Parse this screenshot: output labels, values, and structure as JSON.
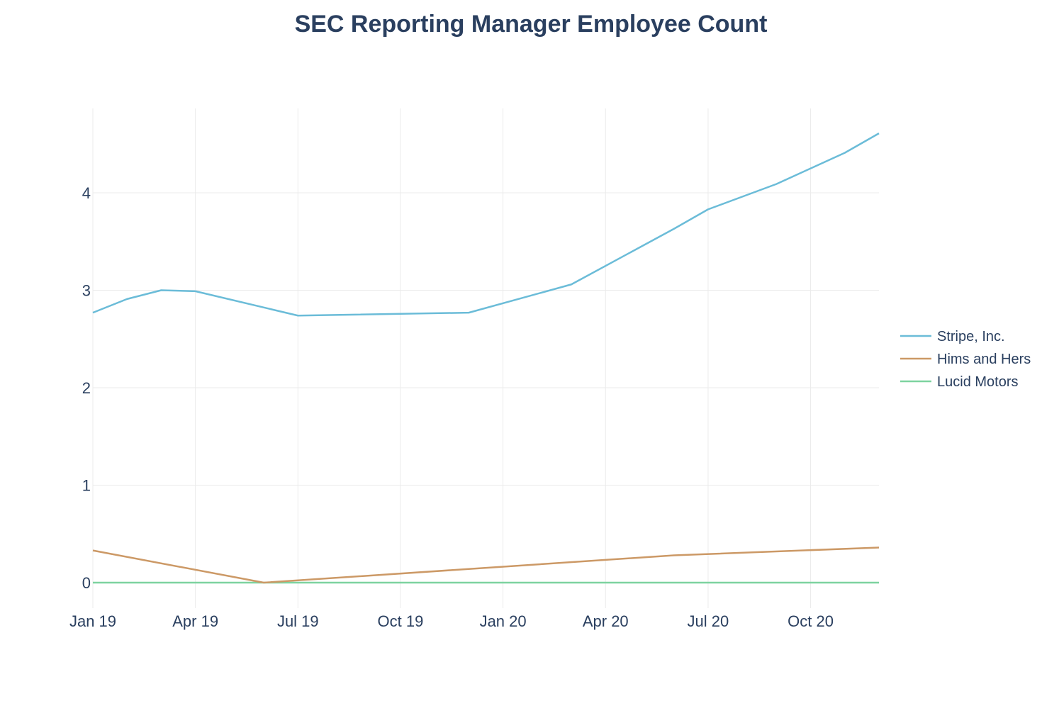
{
  "chart_data": {
    "type": "line",
    "title": "SEC Reporting Manager Employee Count",
    "xlabel": "",
    "ylabel": "",
    "x_ticks": [
      "Jan 19",
      "Apr 19",
      "Jul 19",
      "Oct 19",
      "Jan 20",
      "Apr 20",
      "Jul 20",
      "Oct 20"
    ],
    "x_tick_dates": [
      "2019-01",
      "2019-04",
      "2019-07",
      "2019-10",
      "2020-01",
      "2020-04",
      "2020-07",
      "2020-10"
    ],
    "xlim": [
      "2019-01",
      "2020-12"
    ],
    "y_ticks": [
      0,
      1,
      2,
      3,
      4
    ],
    "ylim": [
      -0.2,
      5.0
    ],
    "grid": true,
    "legend_position": "right",
    "series": [
      {
        "name": "Stripe, Inc.",
        "color": "#6bbcd8",
        "x": [
          "2019-01",
          "2019-02",
          "2019-03",
          "2019-04",
          "2019-07",
          "2019-12",
          "2020-03",
          "2020-06",
          "2020-07",
          "2020-09",
          "2020-10",
          "2020-11",
          "2020-12"
        ],
        "y": [
          2.77,
          2.91,
          3.0,
          2.99,
          2.74,
          2.77,
          3.06,
          3.63,
          3.83,
          4.09,
          4.25,
          4.41,
          4.61
        ]
      },
      {
        "name": "Hims and Hers",
        "color": "#cc9966",
        "x": [
          "2019-01",
          "2019-06",
          "2020-06",
          "2020-12"
        ],
        "y": [
          0.33,
          0.0,
          0.28,
          0.36
        ]
      },
      {
        "name": "Lucid Motors",
        "color": "#7dd3a0",
        "x": [
          "2019-01",
          "2020-12"
        ],
        "y": [
          0,
          0
        ]
      }
    ]
  }
}
